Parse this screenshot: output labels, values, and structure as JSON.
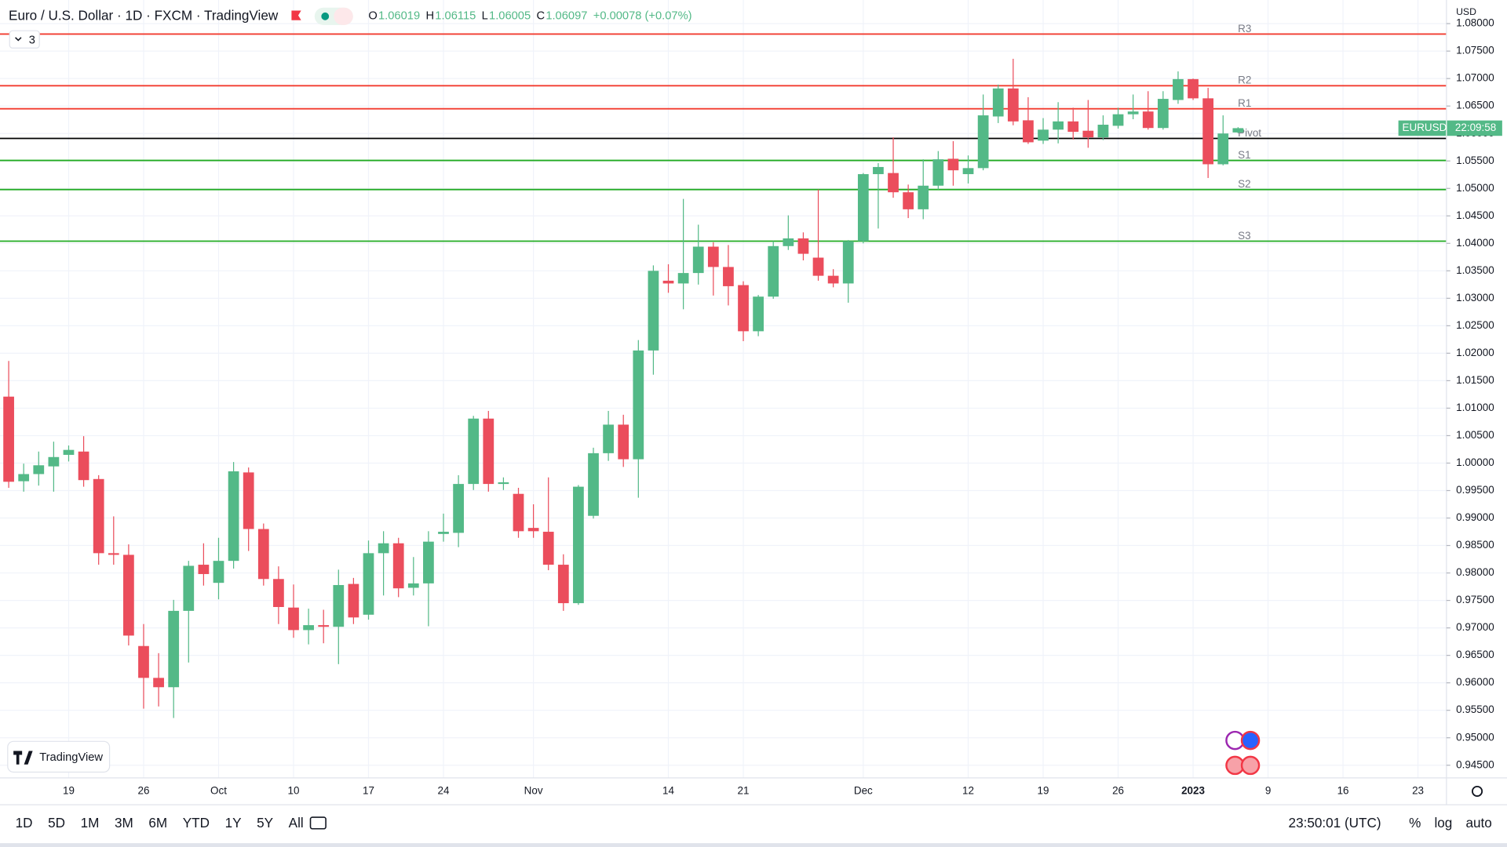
{
  "chart_data": {
    "type": "candlestick",
    "title": "Euro / U.S. Dollar · 1D · FXCM · TradingView",
    "ohlc_legend": [
      {
        "key": "O",
        "value": "1.06019"
      },
      {
        "key": "H",
        "value": "1.06115"
      },
      {
        "key": "L",
        "value": "1.06005"
      },
      {
        "key": "C",
        "value": "1.06097"
      }
    ],
    "change": "+0.00078 (+0.07%)",
    "indicator_count": "3",
    "currency": "USD",
    "up_color": "#53b987",
    "down_color": "#eb4d5c",
    "open": [
      1.0121,
      0.9967,
      0.998,
      0.9994,
      1.0015,
      1.0021,
      0.9971,
      0.9836,
      0.9833,
      0.9667,
      0.9609,
      0.9592,
      0.9731,
      0.9815,
      0.9782,
      0.9822,
      0.9983,
      0.988,
      0.9789,
      0.9737,
      0.9696,
      0.9705,
      0.9702,
      0.978,
      0.9724,
      0.9836,
      0.9854,
      0.9773,
      0.9781,
      0.9871,
      0.9873,
      0.9962,
      1.0081,
      0.9962,
      0.9944,
      0.9882,
      0.9875,
      0.9815,
      0.9745,
      0.9904,
      1.0018,
      1.007,
      1.0007,
      1.0205,
      1.0332,
      1.0327,
      1.0346,
      1.0394,
      1.0357,
      1.0324,
      1.024,
      1.0303,
      1.0395,
      1.0409,
      1.0374,
      1.0341,
      1.0327,
      1.0404,
      1.0526,
      1.0528,
      1.0493,
      1.0462,
      1.0505,
      1.0554,
      1.0526,
      1.0537,
      1.0631,
      1.0682,
      1.0624,
      1.0587,
      1.0607,
      1.0622,
      1.0605,
      1.0593,
      1.0614,
      1.0635,
      1.064,
      1.061,
      1.0661,
      1.0699,
      1.0664,
      1.0544,
      1.06019
    ],
    "high": [
      1.0186,
      0.9999,
      1.0021,
      1.0039,
      1.0032,
      1.0049,
      0.9978,
      0.9903,
      0.9852,
      0.9707,
      0.9654,
      0.9751,
      0.9822,
      0.9854,
      0.9864,
      1.0002,
      0.9992,
      0.989,
      0.9812,
      0.9779,
      0.9735,
      0.9733,
      0.9806,
      0.9791,
      0.9859,
      0.9876,
      0.9864,
      0.9829,
      0.9876,
      0.9908,
      0.9978,
      1.0086,
      1.0095,
      0.9974,
      0.9955,
      0.9925,
      0.9974,
      0.9834,
      0.996,
      1.0028,
      1.0095,
      1.0088,
      1.0224,
      1.036,
      1.0362,
      1.0481,
      1.0434,
      1.0402,
      1.0397,
      1.0331,
      1.0306,
      1.0404,
      1.0451,
      1.042,
      1.0498,
      1.0353,
      1.0406,
      1.0528,
      1.0546,
      1.0593,
      1.0507,
      1.0553,
      1.0568,
      1.0586,
      1.056,
      1.0671,
      1.0689,
      1.0736,
      1.0666,
      1.0628,
      1.0657,
      1.0647,
      1.0661,
      1.0633,
      1.0647,
      1.0671,
      1.0677,
      1.0677,
      1.0713,
      1.07,
      1.0683,
      1.0633,
      1.06115
    ],
    "low": [
      0.9955,
      0.9948,
      0.9959,
      0.9948,
      1.0003,
      0.9957,
      0.9815,
      0.9815,
      0.9668,
      0.9553,
      0.9557,
      0.9536,
      0.9637,
      0.9777,
      0.9752,
      0.9808,
      0.984,
      0.9777,
      0.9707,
      0.9682,
      0.967,
      0.9672,
      0.9634,
      0.9707,
      0.9715,
      0.9759,
      0.9756,
      0.9759,
      0.9703,
      0.9857,
      0.9847,
      0.9951,
      0.9948,
      0.9951,
      0.9864,
      0.9864,
      0.9805,
      0.9731,
      0.9742,
      0.9899,
      1.0004,
      0.9993,
      0.9937,
      1.0161,
      1.031,
      1.028,
      1.0325,
      1.0305,
      1.0287,
      1.0222,
      1.0231,
      1.0299,
      1.0388,
      1.0369,
      1.0332,
      1.032,
      1.0292,
      1.04,
      1.0427,
      1.0483,
      1.0446,
      1.0444,
      1.0498,
      1.0505,
      1.0509,
      1.0533,
      1.0619,
      1.0615,
      1.0581,
      1.0581,
      1.0582,
      1.0589,
      1.0574,
      1.0588,
      1.0609,
      1.0626,
      1.0607,
      1.0607,
      1.0654,
      1.0661,
      1.0519,
      1.0542,
      1.06005
    ],
    "close": [
      0.9966,
      0.998,
      0.9996,
      1.0011,
      1.0024,
      0.9969,
      0.9836,
      0.9833,
      0.9686,
      0.9609,
      0.9592,
      0.9731,
      0.9813,
      0.9798,
      0.9822,
      0.9985,
      0.988,
      0.9789,
      0.9738,
      0.9696,
      0.9705,
      0.9702,
      0.9778,
      0.9719,
      0.9836,
      0.9854,
      0.9772,
      0.9781,
      0.9857,
      0.9875,
      0.9962,
      1.0081,
      0.9962,
      0.9965,
      0.9876,
      0.9876,
      0.9815,
      0.9745,
      0.9957,
      1.0018,
      1.007,
      1.0007,
      1.0205,
      1.035,
      1.0327,
      1.0346,
      1.0394,
      1.0357,
      1.0322,
      1.024,
      1.0303,
      1.0395,
      1.0409,
      1.0381,
      1.0341,
      1.0327,
      1.0404,
      1.0526,
      1.0539,
      1.0493,
      1.0462,
      1.0505,
      1.0553,
      1.0533,
      1.0537,
      1.0633,
      1.0682,
      1.0622,
      1.0584,
      1.0607,
      1.0622,
      1.0603,
      1.0593,
      1.0616,
      1.0635,
      1.064,
      1.061,
      1.0663,
      1.0699,
      1.0664,
      1.0544,
      1.06,
      1.06097
    ],
    "xlim": [
      -0.58,
      95.9
    ],
    "xticks": [
      {
        "value": 4,
        "label": "19"
      },
      {
        "value": 9,
        "label": "26"
      },
      {
        "value": 14,
        "label": "Oct"
      },
      {
        "value": 19,
        "label": "10"
      },
      {
        "value": 24,
        "label": "17"
      },
      {
        "value": 29,
        "label": "24"
      },
      {
        "value": 35,
        "label": "Nov"
      },
      {
        "value": 44,
        "label": "14"
      },
      {
        "value": 49,
        "label": "21"
      },
      {
        "value": 57,
        "label": "Dec"
      },
      {
        "value": 64,
        "label": "12"
      },
      {
        "value": 69,
        "label": "19"
      },
      {
        "value": 74,
        "label": "26"
      },
      {
        "value": 79,
        "label": "2023"
      },
      {
        "value": 84,
        "label": "9"
      },
      {
        "value": 89,
        "label": "16"
      },
      {
        "value": 94,
        "label": "23"
      }
    ],
    "ylim": [
      0.9427,
      1.0843
    ],
    "yticks": [
      {
        "value": 0.945,
        "label": "0.94500"
      },
      {
        "value": 0.95,
        "label": "0.95000"
      },
      {
        "value": 0.955,
        "label": "0.95500"
      },
      {
        "value": 0.96,
        "label": "0.96000"
      },
      {
        "value": 0.965,
        "label": "0.96500"
      },
      {
        "value": 0.97,
        "label": "0.97000"
      },
      {
        "value": 0.975,
        "label": "0.97500"
      },
      {
        "value": 0.98,
        "label": "0.98000"
      },
      {
        "value": 0.985,
        "label": "0.98500"
      },
      {
        "value": 0.99,
        "label": "0.99000"
      },
      {
        "value": 0.995,
        "label": "0.99500"
      },
      {
        "value": 1,
        "label": "1.00000"
      },
      {
        "value": 1.005,
        "label": "1.00500"
      },
      {
        "value": 1.01,
        "label": "1.01000"
      },
      {
        "value": 1.015,
        "label": "1.01500"
      },
      {
        "value": 1.02,
        "label": "1.02000"
      },
      {
        "value": 1.025,
        "label": "1.02500"
      },
      {
        "value": 1.03,
        "label": "1.03000"
      },
      {
        "value": 1.035,
        "label": "1.03500"
      },
      {
        "value": 1.04,
        "label": "1.04000"
      },
      {
        "value": 1.045,
        "label": "1.04500"
      },
      {
        "value": 1.05,
        "label": "1.05000"
      },
      {
        "value": 1.055,
        "label": "1.05500"
      },
      {
        "value": 1.06,
        "label": "1.06000"
      },
      {
        "value": 1.065,
        "label": "1.06500"
      },
      {
        "value": 1.07,
        "label": "1.07000"
      },
      {
        "value": 1.075,
        "label": "1.07500"
      },
      {
        "value": 1.08,
        "label": "1.08000"
      }
    ],
    "grid": true,
    "levels": [
      {
        "name": "R3",
        "value": 1.0781,
        "color": "#f23b2f"
      },
      {
        "name": "R2",
        "value": 1.0687,
        "color": "#f23b2f"
      },
      {
        "name": "R1",
        "value": 1.0645,
        "color": "#f23b2f"
      },
      {
        "name": "Pivot",
        "value": 1.0591,
        "color": "#000000"
      },
      {
        "name": "S1",
        "value": 1.0551,
        "color": "#22ab22"
      },
      {
        "name": "S2",
        "value": 1.0498,
        "color": "#22ab22"
      },
      {
        "name": "S3",
        "value": 1.0404,
        "color": "#22ab22"
      }
    ],
    "last_price_label": {
      "symbol": "EURUSD",
      "countdown": "22:09:58"
    }
  },
  "ui": {
    "logo": "TradingView",
    "timeframes": [
      "1D",
      "5D",
      "1M",
      "3M",
      "6M",
      "YTD",
      "1Y",
      "5Y",
      "All"
    ],
    "clock": "23:50:01 (UTC)",
    "scale_buttons": [
      "%",
      "log",
      "auto"
    ]
  }
}
